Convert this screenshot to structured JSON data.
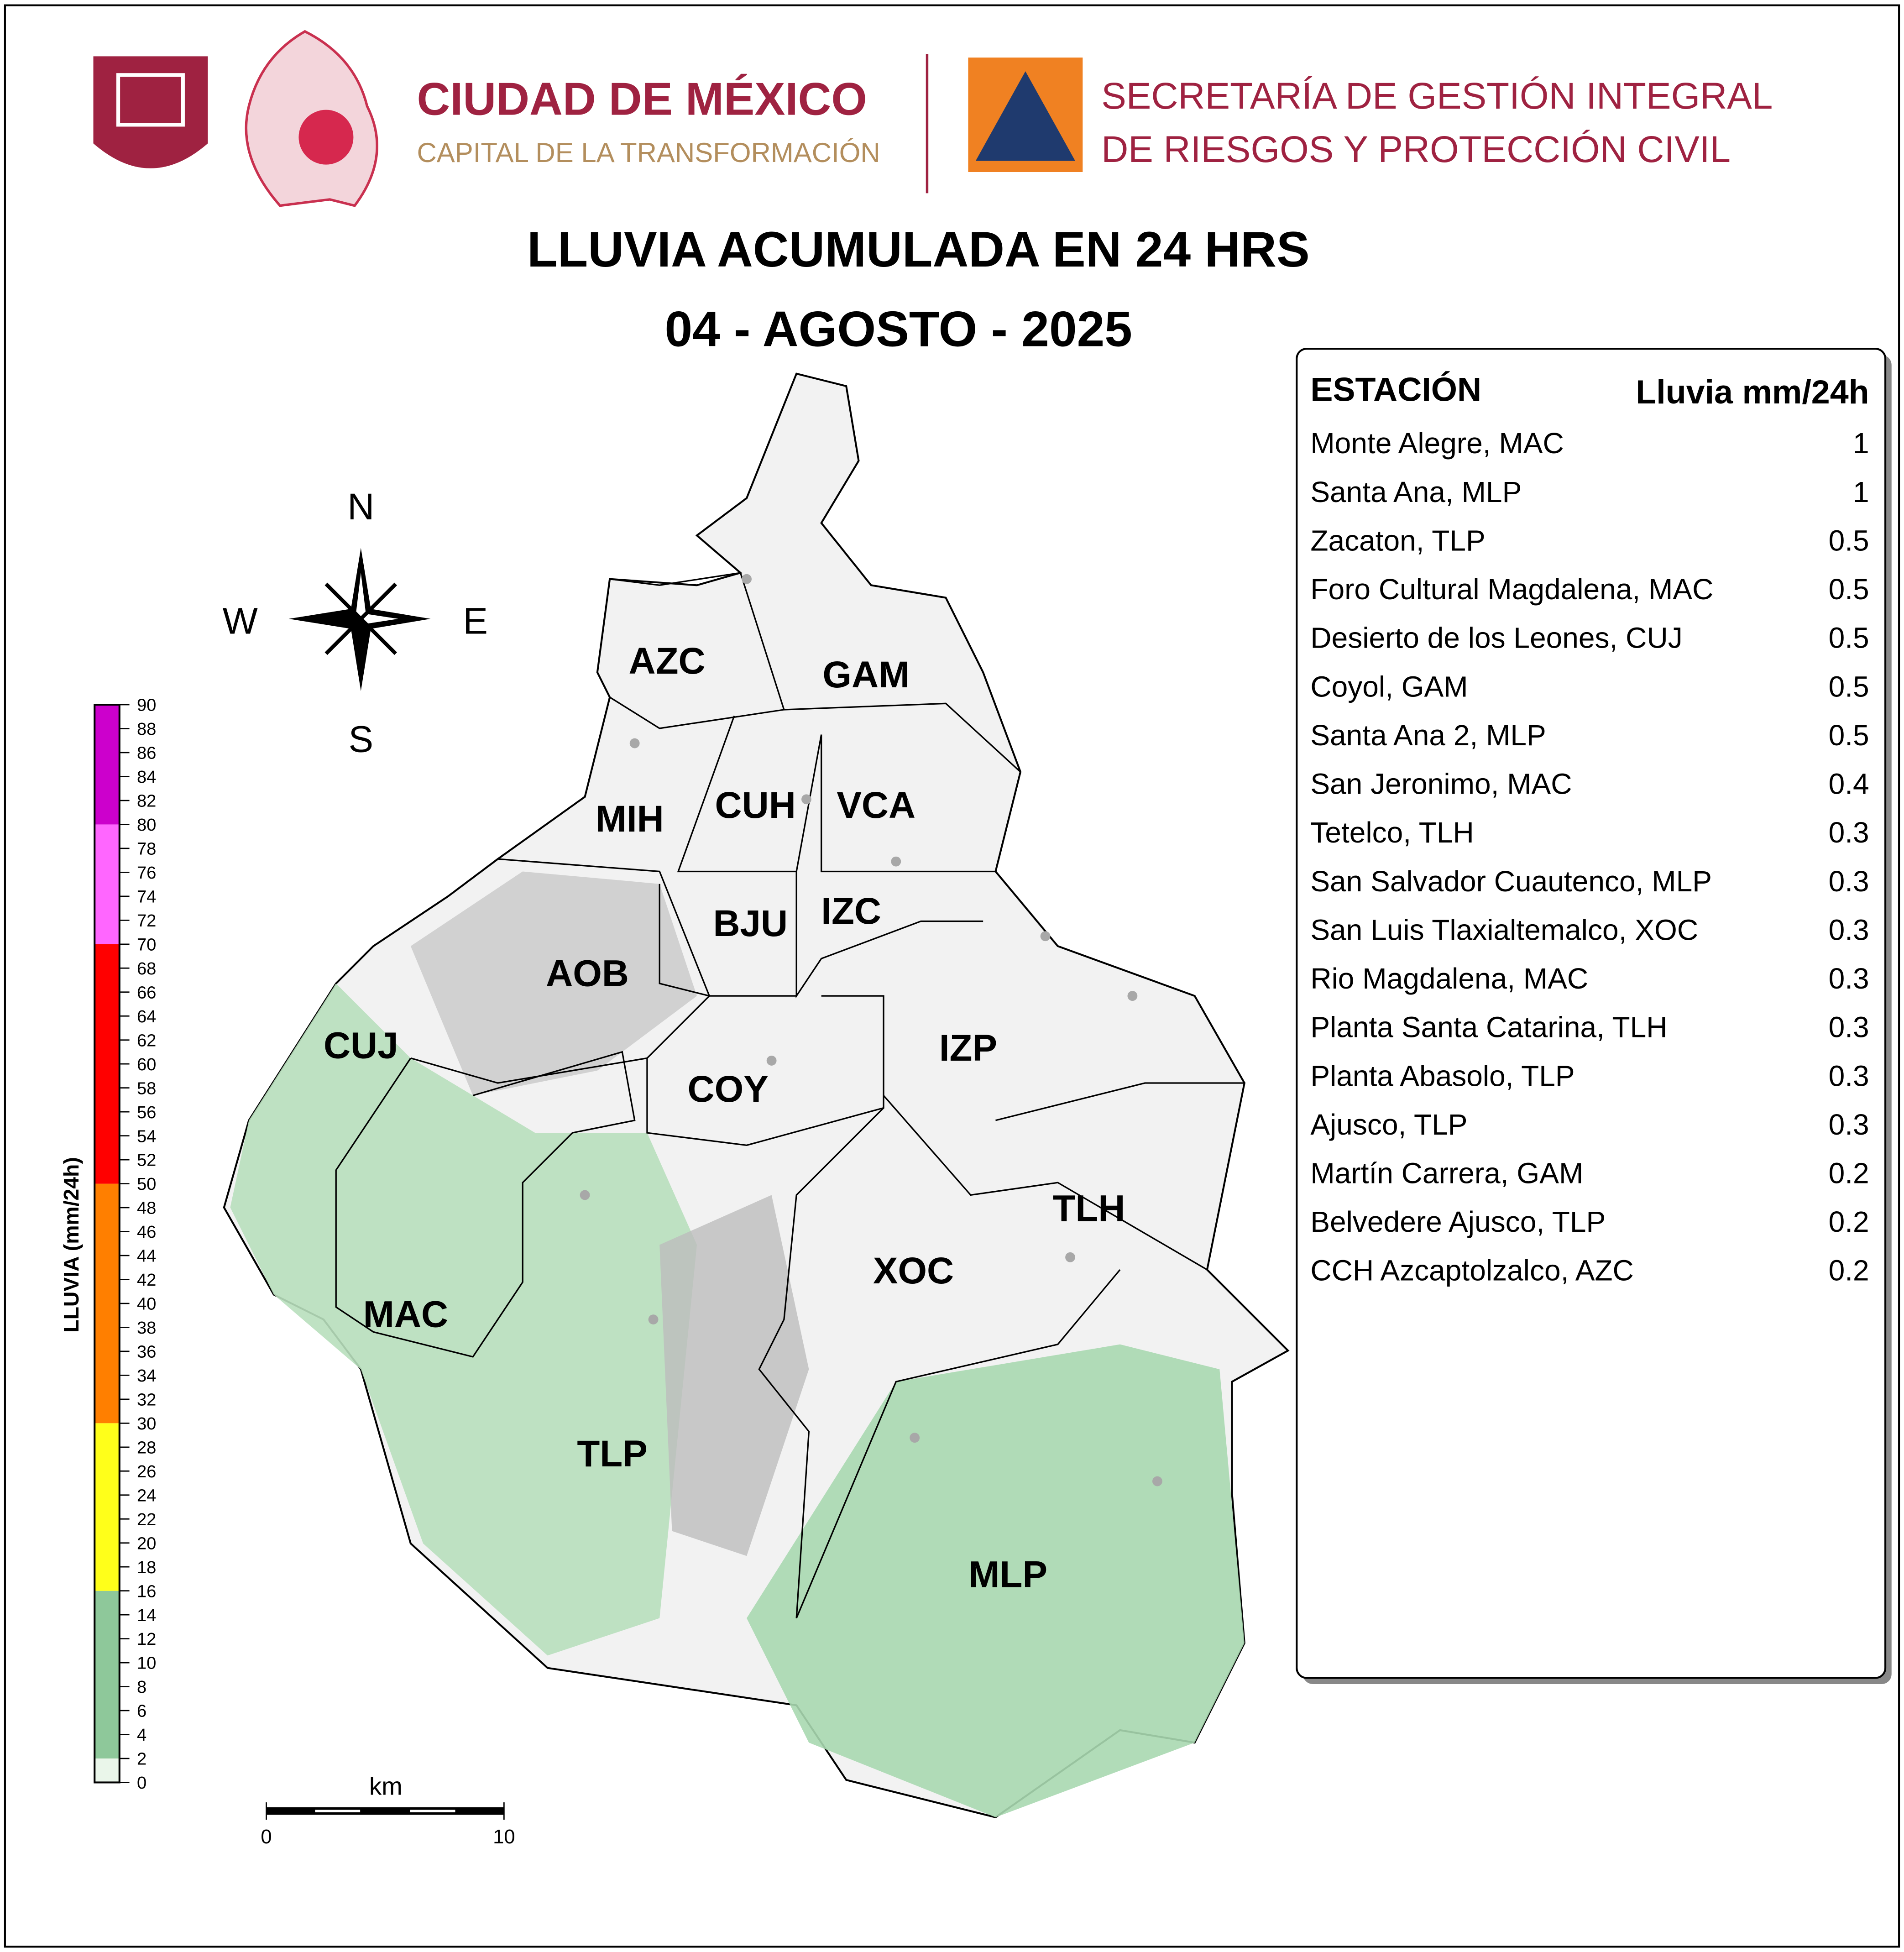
{
  "header": {
    "city": "CIUDAD DE MÉXICO",
    "slogan": "CAPITAL DE LA TRANSFORMACIÓN",
    "agency_line1": "SECRETARÍA DE GESTIÓN INTEGRAL",
    "agency_line2": "DE RIESGOS Y PROTECCIÓN CIVIL"
  },
  "title": "LLUVIA ACUMULADA EN 24 HRS",
  "date": "04 - AGOSTO - 2025",
  "compass": {
    "north": "N",
    "south": "S",
    "west": "W",
    "east": "E"
  },
  "districts": [
    "AZC",
    "GAM",
    "MIH",
    "CUH",
    "VCA",
    "BJU",
    "IZC",
    "AOB",
    "CUJ",
    "COY",
    "IZP",
    "TLH",
    "XOC",
    "MAC",
    "TLP",
    "MLP"
  ],
  "legend": {
    "title": "LLUVIA (mm/24h)",
    "ticks": [
      0,
      2,
      4,
      6,
      8,
      10,
      12,
      14,
      16,
      18,
      20,
      22,
      24,
      26,
      28,
      30,
      32,
      34,
      36,
      38,
      40,
      42,
      44,
      46,
      48,
      50,
      52,
      54,
      56,
      58,
      60,
      62,
      64,
      66,
      68,
      70,
      72,
      74,
      76,
      78,
      80,
      82,
      84,
      86,
      88,
      90
    ],
    "bands": [
      {
        "from": 0,
        "to": 2,
        "color": "#eaf6ea"
      },
      {
        "from": 2,
        "to": 16,
        "color": "#8ec89a"
      },
      {
        "from": 16,
        "to": 30,
        "color": "#ffff1a"
      },
      {
        "from": 30,
        "to": 50,
        "color": "#ff7f00"
      },
      {
        "from": 50,
        "to": 70,
        "color": "#ff0000"
      },
      {
        "from": 70,
        "to": 80,
        "color": "#ff66ff"
      },
      {
        "from": 80,
        "to": 90,
        "color": "#cc00cc"
      }
    ]
  },
  "scale_bar": {
    "unit": "km",
    "ticks": [
      0,
      10
    ]
  },
  "table": {
    "headers": [
      "ESTACIÓN",
      "Lluvia mm/24h"
    ],
    "rows": [
      [
        "Monte Alegre, MAC",
        1
      ],
      [
        "Santa Ana, MLP",
        1
      ],
      [
        "Zacaton, TLP",
        0.5
      ],
      [
        "Foro Cultural Magdalena, MAC",
        0.5
      ],
      [
        "Desierto de los Leones, CUJ",
        0.5
      ],
      [
        "Coyol, GAM",
        0.5
      ],
      [
        "Santa Ana 2, MLP",
        0.5
      ],
      [
        "San Jeronimo, MAC",
        0.4
      ],
      [
        "Tetelco, TLH",
        0.3
      ],
      [
        "San Salvador Cuautenco, MLP",
        0.3
      ],
      [
        "San Luis Tlaxialtemalco, XOC",
        0.3
      ],
      [
        "Rio Magdalena, MAC",
        0.3
      ],
      [
        "Planta Santa Catarina, TLH",
        0.3
      ],
      [
        "Planta Abasolo, TLP",
        0.3
      ],
      [
        "Ajusco, TLP",
        0.3
      ],
      [
        "Martín Carrera, GAM",
        0.2
      ],
      [
        "Belvedere Ajusco, TLP",
        0.2
      ],
      [
        "CCH Azcaptolzalco, AZC",
        0.2
      ]
    ]
  }
}
